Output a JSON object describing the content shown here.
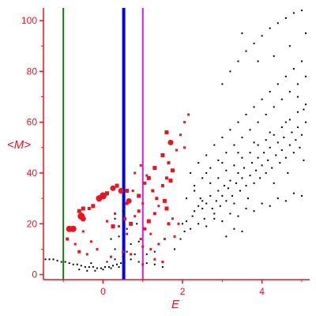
{
  "chart_data": {
    "type": "scatter",
    "title": "",
    "xlabel": "E",
    "ylabel": "<M>",
    "xlim": [
      -1.5,
      5.2
    ],
    "ylim": [
      -2,
      105
    ],
    "x_ticks": [
      0,
      2,
      4
    ],
    "y_ticks": [
      0,
      20,
      40,
      60,
      80,
      100
    ],
    "grid": false,
    "legend": "none",
    "colors": {
      "axis": "#e8141e",
      "points_black": "#000000",
      "points_red": "#e8141e",
      "line_green": "#1a7a1a",
      "line_blue": "#0000ff",
      "line_magenta": "#d020d0"
    },
    "vertical_lines": [
      {
        "x": -1.0,
        "color": "#1a7a1a",
        "width": 2
      },
      {
        "x": 0.52,
        "color": "#0000ff",
        "width": 4
      },
      {
        "x": 1.0,
        "color": "#d020d0",
        "width": 2
      }
    ],
    "series": [
      {
        "color": "#000000",
        "marker": "small-square",
        "points": [
          [
            -1.45,
            6
          ],
          [
            -1.35,
            6
          ],
          [
            -1.25,
            6
          ],
          [
            -1.15,
            5.5
          ],
          [
            -1.05,
            5
          ],
          [
            -0.95,
            5
          ],
          [
            -0.85,
            4.5
          ],
          [
            -0.75,
            4
          ],
          [
            -0.65,
            4
          ],
          [
            -0.55,
            3.5
          ],
          [
            -0.45,
            3
          ],
          [
            -0.35,
            3
          ],
          [
            -0.25,
            3
          ],
          [
            -0.15,
            2.5
          ],
          [
            -0.05,
            2.5
          ],
          [
            0.05,
            3
          ],
          [
            0.15,
            3
          ],
          [
            0.25,
            3.5
          ],
          [
            0.35,
            4
          ],
          [
            0.45,
            4.5
          ],
          [
            -0.6,
            2
          ],
          [
            -0.4,
            1.5
          ],
          [
            -0.2,
            1.5
          ],
          [
            0.0,
            2
          ],
          [
            0.2,
            2.5
          ],
          [
            0.4,
            3
          ],
          [
            -0.3,
            4.5
          ],
          [
            0.1,
            5
          ],
          [
            0.3,
            6
          ],
          [
            0.5,
            7
          ],
          [
            0.7,
            6
          ],
          [
            0.9,
            5
          ],
          [
            1.1,
            4.5
          ],
          [
            1.3,
            4
          ],
          [
            1.5,
            3
          ],
          [
            0.3,
            10
          ],
          [
            0.6,
            9
          ],
          [
            0.8,
            8
          ],
          [
            1.1,
            8
          ],
          [
            1.3,
            9
          ],
          [
            0.2,
            14
          ],
          [
            0.4,
            15
          ],
          [
            0.7,
            12
          ],
          [
            0.9,
            13
          ],
          [
            0.6,
            18
          ],
          [
            0.85,
            20
          ],
          [
            0.3,
            22
          ],
          [
            0.5,
            25
          ],
          [
            1.8,
            10
          ],
          [
            1.95,
            14
          ],
          [
            2.05,
            17
          ],
          [
            2.1,
            21
          ],
          [
            2.25,
            23
          ],
          [
            2.3,
            25
          ],
          [
            2.4,
            27
          ],
          [
            2.45,
            30
          ],
          [
            2.5,
            26
          ],
          [
            2.55,
            22
          ],
          [
            2.6,
            28
          ],
          [
            2.7,
            31
          ],
          [
            2.75,
            26
          ],
          [
            2.8,
            24
          ],
          [
            2.85,
            29
          ],
          [
            2.9,
            33
          ],
          [
            2.95,
            27
          ],
          [
            3.0,
            31
          ],
          [
            3.05,
            35
          ],
          [
            3.1,
            29
          ],
          [
            3.15,
            34
          ],
          [
            3.2,
            37
          ],
          [
            3.25,
            31
          ],
          [
            3.3,
            28
          ],
          [
            3.35,
            36
          ],
          [
            3.4,
            40
          ],
          [
            3.45,
            33
          ],
          [
            3.5,
            38
          ],
          [
            3.55,
            42
          ],
          [
            3.6,
            35
          ],
          [
            3.65,
            30
          ],
          [
            3.7,
            39
          ],
          [
            3.75,
            44
          ],
          [
            3.8,
            36
          ],
          [
            3.85,
            41
          ],
          [
            3.9,
            46
          ],
          [
            3.95,
            38
          ],
          [
            4.0,
            43
          ],
          [
            4.05,
            48
          ],
          [
            4.1,
            40
          ],
          [
            4.15,
            45
          ],
          [
            4.2,
            50
          ],
          [
            4.25,
            42
          ],
          [
            4.3,
            36
          ],
          [
            4.35,
            47
          ],
          [
            4.4,
            52
          ],
          [
            4.45,
            44
          ],
          [
            4.5,
            49
          ],
          [
            4.55,
            54
          ],
          [
            4.6,
            46
          ],
          [
            4.65,
            40
          ],
          [
            4.7,
            51
          ],
          [
            4.75,
            56
          ],
          [
            4.8,
            48
          ],
          [
            4.85,
            53
          ],
          [
            4.9,
            58
          ],
          [
            4.95,
            50
          ],
          [
            5.0,
            55
          ],
          [
            5.05,
            45
          ],
          [
            5.1,
            60
          ],
          [
            2.0,
            20
          ],
          [
            2.2,
            18
          ],
          [
            2.4,
            20
          ],
          [
            2.6,
            19
          ],
          [
            2.8,
            22
          ],
          [
            3.0,
            21
          ],
          [
            3.2,
            24
          ],
          [
            3.4,
            23
          ],
          [
            3.6,
            26
          ],
          [
            3.8,
            25
          ],
          [
            4.0,
            28
          ],
          [
            4.2,
            27
          ],
          [
            4.4,
            30
          ],
          [
            4.6,
            29
          ],
          [
            4.8,
            32
          ],
          [
            5.0,
            31
          ],
          [
            3.1,
            15
          ],
          [
            3.3,
            18
          ],
          [
            3.5,
            17
          ],
          [
            2.2,
            40
          ],
          [
            2.4,
            44
          ],
          [
            2.6,
            47
          ],
          [
            2.8,
            51
          ],
          [
            3.0,
            54
          ],
          [
            3.2,
            57
          ],
          [
            3.4,
            60
          ],
          [
            3.6,
            63
          ],
          [
            3.8,
            66
          ],
          [
            4.0,
            69
          ],
          [
            4.2,
            72
          ],
          [
            4.4,
            75
          ],
          [
            4.6,
            78
          ],
          [
            4.8,
            81
          ],
          [
            5.0,
            84
          ],
          [
            2.3,
            35
          ],
          [
            2.5,
            38
          ],
          [
            2.7,
            42
          ],
          [
            2.9,
            45
          ],
          [
            3.1,
            48
          ],
          [
            3.3,
            51
          ],
          [
            3.5,
            54
          ],
          [
            3.7,
            57
          ],
          [
            3.9,
            60
          ],
          [
            4.1,
            63
          ],
          [
            4.3,
            66
          ],
          [
            4.5,
            69
          ],
          [
            4.7,
            72
          ],
          [
            4.9,
            75
          ],
          [
            5.1,
            78
          ],
          [
            3.0,
            75
          ],
          [
            3.2,
            80
          ],
          [
            3.4,
            84
          ],
          [
            3.6,
            88
          ],
          [
            3.8,
            91
          ],
          [
            4.0,
            94
          ],
          [
            4.2,
            97
          ],
          [
            4.4,
            99
          ],
          [
            4.6,
            101
          ],
          [
            4.8,
            103
          ],
          [
            5.0,
            104
          ],
          [
            5.1,
            95
          ],
          [
            3.5,
            95
          ],
          [
            3.9,
            84
          ],
          [
            4.3,
            86
          ],
          [
            4.7,
            90
          ],
          [
            4.9,
            70
          ],
          [
            5.05,
            65
          ],
          [
            4.6,
            60
          ],
          [
            4.2,
            56
          ],
          [
            3.8,
            52
          ],
          [
            3.4,
            48
          ],
          [
            3.0,
            44
          ],
          [
            2.6,
            40
          ],
          [
            2.1,
            30
          ],
          [
            2.3,
            33
          ],
          [
            2.5,
            29
          ],
          [
            2.7,
            36
          ],
          [
            2.9,
            38
          ],
          [
            3.1,
            41
          ],
          [
            3.3,
            43
          ],
          [
            3.5,
            46
          ],
          [
            3.7,
            48
          ],
          [
            3.9,
            51
          ],
          [
            4.1,
            53
          ],
          [
            4.3,
            55
          ],
          [
            4.5,
            58
          ],
          [
            4.7,
            61
          ],
          [
            4.9,
            64
          ],
          [
            5.1,
            67
          ]
        ]
      },
      {
        "color": "#e8141e",
        "marker": "square-varied",
        "points": [
          [
            -0.5,
            22,
            6
          ],
          [
            -0.6,
            25,
            5
          ],
          [
            -0.55,
            23,
            8
          ],
          [
            -0.5,
            26,
            5
          ],
          [
            -0.35,
            26,
            4
          ],
          [
            -0.25,
            27,
            5
          ],
          [
            -0.1,
            30,
            7
          ],
          [
            0.0,
            31,
            8
          ],
          [
            0.1,
            32,
            5
          ],
          [
            0.25,
            34,
            6
          ],
          [
            0.35,
            35,
            5
          ],
          [
            0.45,
            33,
            6
          ],
          [
            0.6,
            33,
            5
          ],
          [
            0.65,
            29,
            6
          ],
          [
            -0.85,
            18,
            7
          ],
          [
            -0.75,
            18,
            7
          ],
          [
            -0.9,
            14,
            4
          ],
          [
            -0.7,
            12,
            3
          ],
          [
            -0.5,
            17,
            3
          ],
          [
            -0.6,
            9,
            4
          ],
          [
            -0.3,
            13,
            3
          ],
          [
            -0.4,
            8,
            3
          ],
          [
            -0.15,
            10,
            3
          ],
          [
            0.1,
            21,
            3
          ],
          [
            0.25,
            19,
            5
          ],
          [
            0.3,
            24,
            3
          ],
          [
            0.4,
            19,
            3
          ],
          [
            0.55,
            22,
            4
          ],
          [
            0.6,
            16,
            3
          ],
          [
            0.7,
            20,
            5
          ],
          [
            0.8,
            23,
            3
          ],
          [
            0.9,
            25,
            4
          ],
          [
            0.95,
            14,
            3
          ],
          [
            1.05,
            18,
            4
          ],
          [
            1.15,
            21,
            5
          ],
          [
            1.2,
            16,
            3
          ],
          [
            1.3,
            24,
            4
          ],
          [
            0.6,
            28,
            4
          ],
          [
            0.75,
            33,
            3
          ],
          [
            0.9,
            31,
            5
          ],
          [
            1.0,
            28,
            3
          ],
          [
            1.05,
            36,
            4
          ],
          [
            1.15,
            38,
            5
          ],
          [
            1.25,
            33,
            4
          ],
          [
            1.35,
            30,
            4
          ],
          [
            1.4,
            27,
            3
          ],
          [
            1.5,
            35,
            4
          ],
          [
            1.55,
            29,
            5
          ],
          [
            1.6,
            38,
            4
          ],
          [
            1.65,
            44,
            4
          ],
          [
            1.7,
            52,
            6
          ],
          [
            1.6,
            56,
            5
          ],
          [
            1.75,
            41,
            5
          ],
          [
            1.85,
            49,
            3
          ],
          [
            1.95,
            55,
            3
          ],
          [
            2.05,
            60,
            3
          ],
          [
            2.15,
            63,
            3
          ],
          [
            0.8,
            40,
            3
          ],
          [
            0.95,
            43,
            3
          ],
          [
            1.1,
            39,
            3
          ],
          [
            1.3,
            42,
            5
          ],
          [
            1.5,
            47,
            5
          ],
          [
            1.7,
            37,
            5
          ],
          [
            1.6,
            26,
            5
          ],
          [
            1.65,
            20,
            4
          ],
          [
            1.75,
            22,
            3
          ],
          [
            1.8,
            15,
            3
          ],
          [
            1.55,
            14,
            3
          ],
          [
            0.2,
            7,
            3
          ],
          [
            0.5,
            9,
            3
          ],
          [
            0.7,
            8,
            3
          ],
          [
            1.0,
            11,
            3
          ],
          [
            1.2,
            10,
            3
          ],
          [
            1.4,
            12,
            3
          ],
          [
            1.3,
            6,
            3
          ],
          [
            1.5,
            5,
            3
          ],
          [
            1.0,
            4,
            3
          ],
          [
            1.9,
            20,
            3
          ],
          [
            2.05,
            50,
            3
          ]
        ]
      }
    ]
  }
}
